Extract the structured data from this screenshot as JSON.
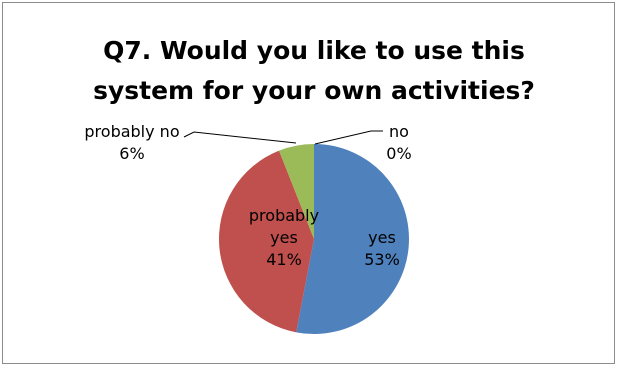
{
  "chart_data": {
    "type": "pie",
    "title_lines": [
      "Q7. Would you like  to use this",
      "system for your own activities?"
    ],
    "slices": [
      {
        "name": "yes",
        "value": 53,
        "label_lines": [
          "yes",
          "53%"
        ],
        "color": "#4f81bd"
      },
      {
        "name": "probably yes",
        "value": 41,
        "label_lines": [
          "probably",
          "yes",
          "41%"
        ],
        "color": "#c0504d"
      },
      {
        "name": "probably no",
        "value": 6,
        "label_lines": [
          "probably no",
          "6%"
        ],
        "color": "#9bbb59"
      },
      {
        "name": "no",
        "value": 0,
        "label_lines": [
          "no",
          "0%"
        ],
        "color": "#8064a2"
      }
    ],
    "legend": "none",
    "border_color": "#8c8c8c"
  }
}
